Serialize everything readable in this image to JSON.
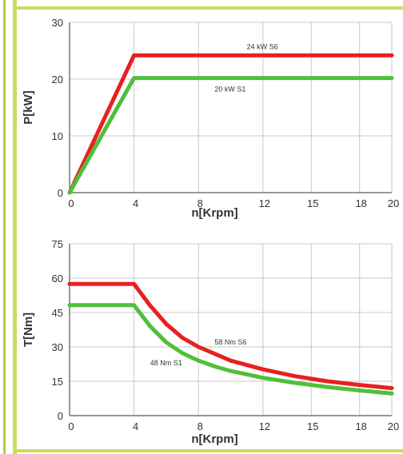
{
  "colors": {
    "frame": "#c9dc62",
    "grid": "#c8c8c8",
    "axis": "#777777",
    "s6": "#e8201f",
    "s1": "#4fbf3a",
    "text": "#333333"
  },
  "chart_data": [
    {
      "type": "line",
      "xlabel": "n[Krpm]",
      "ylabel": "P[kW]",
      "xlim": [
        0,
        20
      ],
      "ylim": [
        0,
        30
      ],
      "xticks": [
        0,
        4,
        8,
        12,
        15,
        18,
        20
      ],
      "yticks": [
        0,
        10,
        20,
        30
      ],
      "xtick_labels": [
        "0",
        "4",
        "8",
        "12",
        "15",
        "18",
        "20"
      ],
      "ytick_labels": [
        "0",
        "10",
        "20",
        "30"
      ],
      "grid": true,
      "series": [
        {
          "name": "24 kW S6",
          "color": "#e8201f",
          "x": [
            0,
            4,
            20
          ],
          "y": [
            0,
            24.2,
            24.2
          ]
        },
        {
          "name": "20 kW S1",
          "color": "#4fbf3a",
          "x": [
            0,
            4,
            20
          ],
          "y": [
            0,
            20.2,
            20.2
          ]
        }
      ],
      "annotations": [
        {
          "text": "24 kW S6",
          "x": 11,
          "y": 25.3
        },
        {
          "text": "20 kW S1",
          "x": 9,
          "y": 17.8
        }
      ]
    },
    {
      "type": "line",
      "xlabel": "n[Krpm]",
      "ylabel": "T[Nm]",
      "xlim": [
        0,
        20
      ],
      "ylim": [
        0,
        75
      ],
      "xticks": [
        0,
        4,
        8,
        12,
        15,
        18,
        20
      ],
      "yticks": [
        0,
        15,
        30,
        45,
        60,
        75
      ],
      "xtick_labels": [
        "0",
        "4",
        "8",
        "12",
        "15",
        "18",
        "20"
      ],
      "ytick_labels": [
        "0",
        "15",
        "30",
        "45",
        "60",
        "75"
      ],
      "grid": true,
      "series": [
        {
          "name": "58 Nm S6",
          "color": "#e8201f",
          "x": [
            0,
            4,
            5,
            6,
            7,
            8,
            9,
            10,
            12,
            14,
            16,
            18,
            20
          ],
          "y": [
            57.5,
            57.5,
            48,
            40,
            34,
            30,
            27,
            24,
            20.2,
            17.2,
            15,
            13.4,
            12
          ]
        },
        {
          "name": "48 Nm S1",
          "color": "#4fbf3a",
          "x": [
            0,
            4,
            5,
            6,
            7,
            8,
            9,
            10,
            12,
            14,
            16,
            18,
            20
          ],
          "y": [
            48.2,
            48.2,
            39,
            32,
            27.3,
            24,
            21.5,
            19.5,
            16.5,
            14.3,
            12.5,
            11,
            9.7
          ]
        }
      ],
      "annotations": [
        {
          "text": "58 Nm S6",
          "x": 9,
          "y": 31
        },
        {
          "text": "48 Nm S1",
          "x": 5,
          "y": 22
        }
      ]
    }
  ]
}
